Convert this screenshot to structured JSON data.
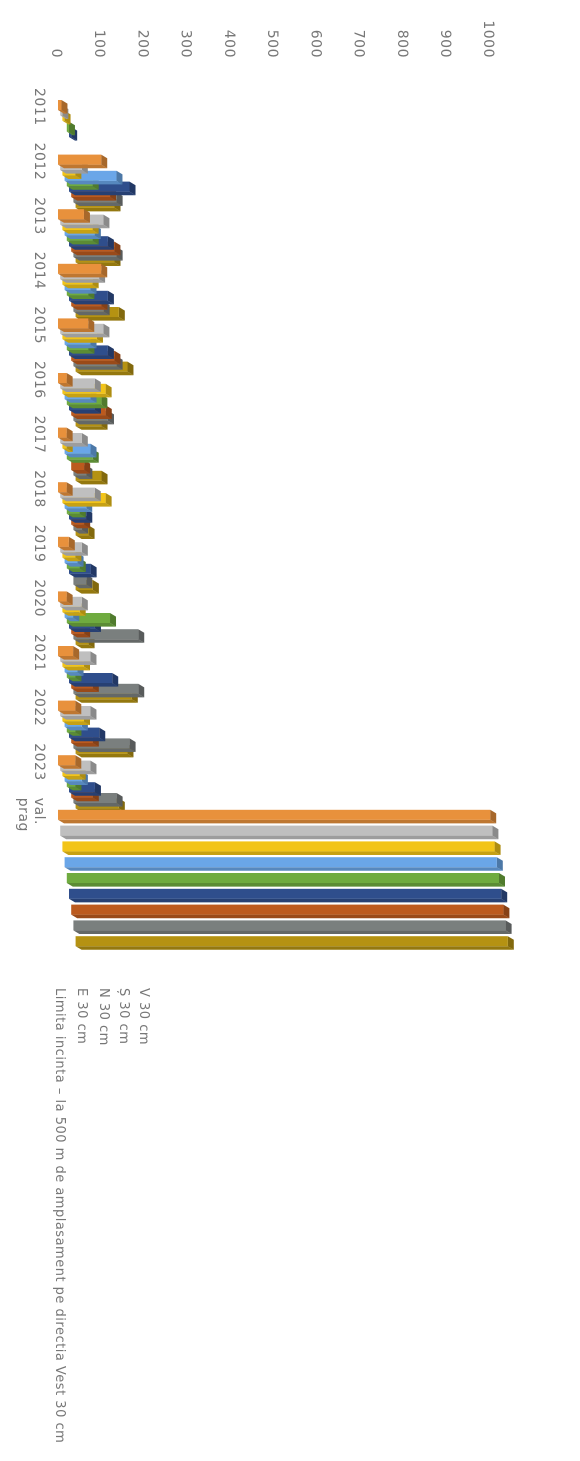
{
  "chart_data": {
    "type": "bar",
    "orientation": "rotated-90",
    "style": "3d-clustered-bar",
    "categories": [
      "2011",
      "2012",
      "2013",
      "2014",
      "2015",
      "2016",
      "2017",
      "2018",
      "2019",
      "2020",
      "2021",
      "2022",
      "2023",
      "val. prag"
    ],
    "y_ticks": [
      "0",
      "100",
      "200",
      "300",
      "400",
      "500",
      "600",
      "700",
      "800",
      "900",
      "1000"
    ],
    "ylim": [
      0,
      1000
    ],
    "grid": false,
    "legend": "none",
    "series": [
      {
        "name": "",
        "color": "#E8913C",
        "values": [
          8,
          100,
          60,
          100,
          70,
          20,
          20,
          20,
          25,
          20,
          35,
          40,
          40,
          1000
        ]
      },
      {
        "name": "",
        "color": "#BFBFBF",
        "values": [
          5,
          50,
          100,
          90,
          100,
          80,
          50,
          80,
          50,
          50,
          70,
          70,
          70,
          1000
        ]
      },
      {
        "name": "",
        "color": "#F2C418",
        "values": [
          5,
          30,
          70,
          70,
          80,
          100,
          10,
          100,
          30,
          40,
          50,
          50,
          40,
          1000
        ]
      },
      {
        "name": "",
        "color": "#6AA6E8",
        "values": [
          0,
          120,
          70,
          60,
          60,
          60,
          60,
          50,
          30,
          20,
          30,
          40,
          40,
          1000
        ]
      },
      {
        "name": "",
        "color": "#6FAB3F",
        "values": [
          5,
          60,
          60,
          50,
          50,
          80,
          60,
          30,
          30,
          100,
          20,
          20,
          20,
          1000
        ]
      },
      {
        "name": "V 30 cm",
        "color": "#2F4E8C",
        "values": [
          5,
          140,
          90,
          90,
          90,
          60,
          0,
          40,
          50,
          60,
          100,
          70,
          60,
          1000
        ]
      },
      {
        "name": "Ș 30 cm",
        "color": "#BC5A1E",
        "values": [
          0,
          90,
          100,
          70,
          100,
          80,
          30,
          30,
          0,
          30,
          50,
          50,
          50,
          1000
        ]
      },
      {
        "name": "N 30 cm",
        "color": "#7A7F7E",
        "values": [
          0,
          100,
          100,
          70,
          100,
          80,
          30,
          20,
          30,
          150,
          150,
          130,
          100,
          1000
        ]
      },
      {
        "name": "E 30 cm",
        "color": "#B59212",
        "values": [
          0,
          90,
          90,
          100,
          120,
          60,
          60,
          30,
          40,
          30,
          130,
          120,
          100,
          1000
        ]
      },
      {
        "name": "Limita incinta – la 500 m de amplasament pe directia Vest 30 cm",
        "color": "#B59212",
        "values": [
          0,
          0,
          0,
          0,
          0,
          0,
          0,
          0,
          0,
          0,
          0,
          0,
          0,
          0
        ]
      }
    ]
  }
}
